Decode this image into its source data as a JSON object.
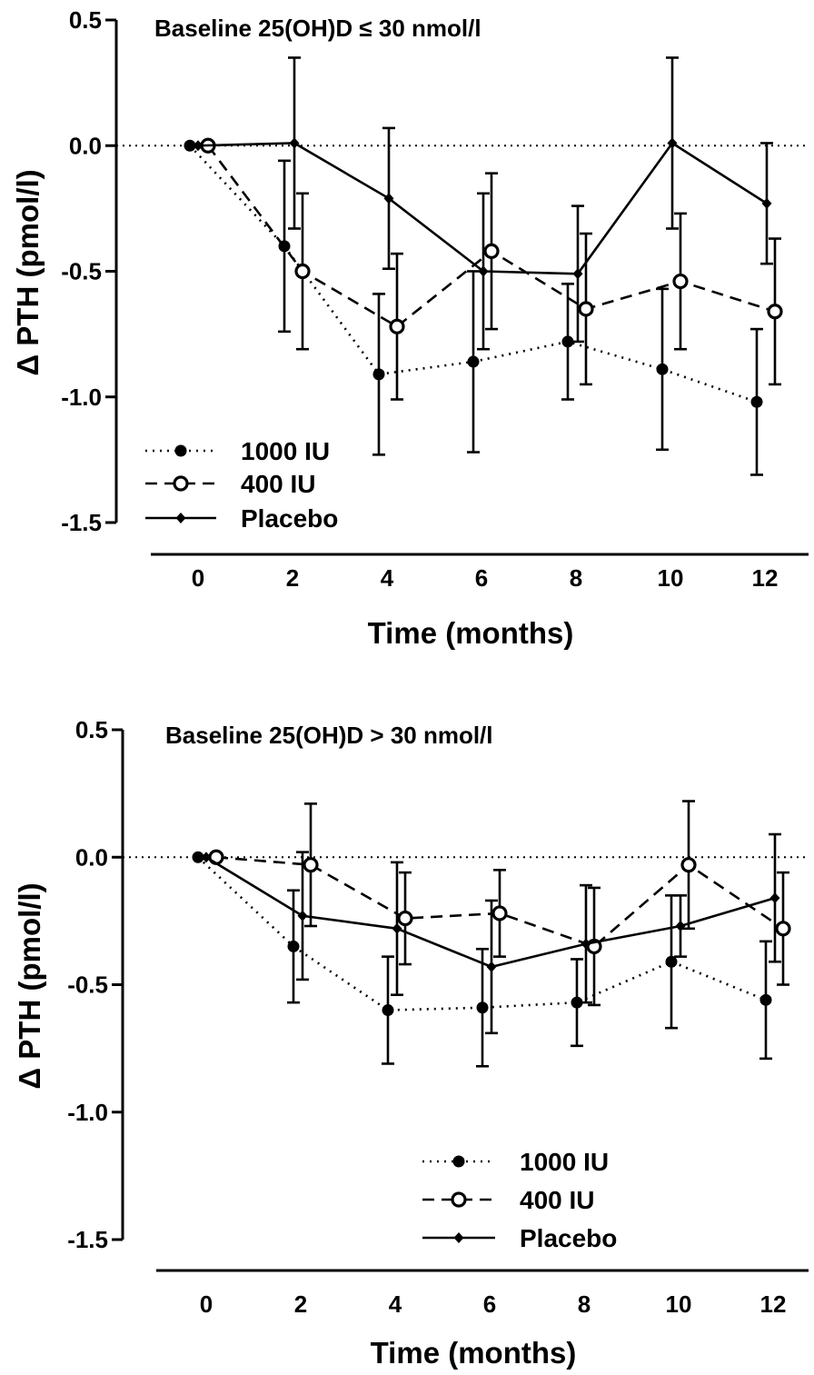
{
  "chart_data": [
    {
      "type": "line",
      "title": "Baseline 25(OH)D ≤ 30 nmol/l",
      "xlabel": "Time  (months)",
      "ylabel": "Δ PTH (pmol/l)",
      "xlim": [
        -1,
        13
      ],
      "ylim": [
        -1.5,
        0.5
      ],
      "x_ticks": [
        "0",
        "2",
        "4",
        "6",
        "8",
        "10",
        "12"
      ],
      "y_ticks": [
        "0.5",
        "0.0",
        "-0.5",
        "-1.0",
        "-1.5"
      ],
      "reference_line": 0,
      "legend_position": "bottom-left",
      "x": [
        0,
        2,
        4,
        6,
        8,
        10,
        12
      ],
      "series": [
        {
          "name": "1000 IU",
          "style": "dotted",
          "marker": "filled-circle",
          "values": [
            0,
            -0.4,
            -0.91,
            -0.86,
            -0.78,
            -0.89,
            -1.02
          ],
          "error": [
            0,
            0.34,
            0.32,
            0.36,
            0.23,
            0.32,
            0.29
          ]
        },
        {
          "name": "400 IU",
          "style": "dashed",
          "marker": "open-circle",
          "values": [
            0,
            -0.5,
            -0.72,
            -0.42,
            -0.65,
            -0.54,
            -0.66
          ],
          "error": [
            0,
            0.31,
            0.29,
            0.31,
            0.3,
            0.27,
            0.29
          ]
        },
        {
          "name": "Placebo",
          "style": "solid",
          "marker": "diamond",
          "values": [
            0,
            0.01,
            -0.21,
            -0.5,
            -0.51,
            0.01,
            -0.23
          ],
          "error": [
            0,
            0.34,
            0.28,
            0.31,
            0.27,
            0.34,
            0.24
          ]
        }
      ]
    },
    {
      "type": "line",
      "title": "Baseline 25(OH)D > 30 nmol/l",
      "xlabel": "Time  (months)",
      "ylabel": "Δ PTH (pmol/l)",
      "xlim": [
        -1,
        13
      ],
      "ylim": [
        -1.5,
        0.5
      ],
      "x_ticks": [
        "0",
        "2",
        "4",
        "6",
        "8",
        "10",
        "12"
      ],
      "y_ticks": [
        "0.5",
        "0.0",
        "-0.5",
        "-1.0",
        "-1.5"
      ],
      "reference_line": 0,
      "legend_position": "bottom-right",
      "x": [
        0,
        2,
        4,
        6,
        8,
        10,
        12
      ],
      "series": [
        {
          "name": "1000 IU",
          "style": "dotted",
          "marker": "filled-circle",
          "values": [
            0,
            -0.35,
            -0.6,
            -0.59,
            -0.57,
            -0.41,
            -0.56
          ],
          "error": [
            0,
            0.22,
            0.21,
            0.23,
            0.17,
            0.26,
            0.23
          ]
        },
        {
          "name": "400 IU",
          "style": "dashed",
          "marker": "open-circle",
          "values": [
            0,
            -0.03,
            -0.24,
            -0.22,
            -0.35,
            -0.03,
            -0.28
          ],
          "error": [
            0,
            0.24,
            0.18,
            0.17,
            0.23,
            0.25,
            0.22
          ]
        },
        {
          "name": "Placebo",
          "style": "solid",
          "marker": "diamond",
          "values": [
            0,
            -0.23,
            -0.28,
            -0.43,
            -0.34,
            -0.27,
            -0.16
          ],
          "error": [
            0,
            0.25,
            0.26,
            0.26,
            0.23,
            0.12,
            0.25
          ]
        }
      ]
    }
  ]
}
